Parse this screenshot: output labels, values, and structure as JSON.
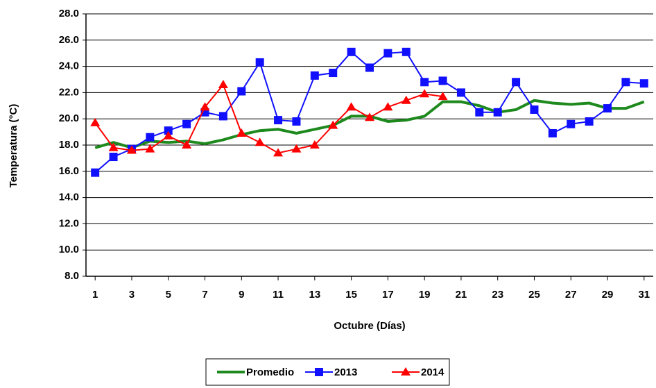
{
  "chart_data": {
    "type": "line",
    "x_label": "Octubre (Días)",
    "y_label": "Temperatura (°C)",
    "x": [
      1,
      2,
      3,
      4,
      5,
      6,
      7,
      8,
      9,
      10,
      11,
      12,
      13,
      14,
      15,
      16,
      17,
      18,
      19,
      20,
      21,
      22,
      23,
      24,
      25,
      26,
      27,
      28,
      29,
      30,
      31
    ],
    "series": [
      {
        "name": "Promedio",
        "color": "#1e8a1e",
        "marker": "none",
        "width": 4,
        "values": [
          17.8,
          18.2,
          17.8,
          18.3,
          18.2,
          18.3,
          18.1,
          18.4,
          18.8,
          19.1,
          19.2,
          18.9,
          19.2,
          19.5,
          20.2,
          20.2,
          19.8,
          19.9,
          20.2,
          21.3,
          21.3,
          21.0,
          20.5,
          20.7,
          21.4,
          21.2,
          21.1,
          21.2,
          20.8,
          20.8,
          21.3
        ]
      },
      {
        "name": "2013",
        "color": "#1010ff",
        "marker": "square",
        "width": 2,
        "values": [
          15.9,
          17.1,
          17.7,
          18.6,
          19.1,
          19.6,
          20.5,
          20.2,
          22.1,
          24.3,
          19.9,
          19.8,
          23.3,
          23.5,
          25.1,
          23.9,
          25.0,
          25.1,
          22.8,
          22.9,
          22.0,
          20.5,
          20.5,
          22.8,
          20.7,
          18.9,
          19.6,
          19.8,
          20.8,
          22.8,
          22.7
        ]
      },
      {
        "name": "2014",
        "color": "#ff0000",
        "marker": "triangle",
        "width": 2,
        "values": [
          19.7,
          17.8,
          17.6,
          17.7,
          18.7,
          18.0,
          20.9,
          22.6,
          18.9,
          18.2,
          17.4,
          17.7,
          18.0,
          19.5,
          20.9,
          20.1,
          20.9,
          21.4,
          21.9,
          21.7,
          null,
          null,
          null,
          null,
          null,
          null,
          null,
          null,
          null,
          null,
          null
        ]
      }
    ],
    "xlim": [
      0.5,
      31.5
    ],
    "xticks": [
      1,
      3,
      5,
      7,
      9,
      11,
      13,
      15,
      17,
      19,
      21,
      23,
      25,
      27,
      29,
      31
    ],
    "ylim": [
      8,
      28
    ],
    "yticks": [
      {
        "value": 8,
        "label": "8.0"
      },
      {
        "value": 10,
        "label": "10.0"
      },
      {
        "value": 12,
        "label": "12.0"
      },
      {
        "value": 14,
        "label": "14.0"
      },
      {
        "value": 16,
        "label": "16.0"
      },
      {
        "value": 18,
        "label": "18.0"
      },
      {
        "value": 20,
        "label": "20.0"
      },
      {
        "value": 22,
        "label": "22.0"
      },
      {
        "value": 24,
        "label": "24.0"
      },
      {
        "value": 26,
        "label": "26.0"
      },
      {
        "value": 28,
        "label": "28.0"
      }
    ],
    "grid": true,
    "legend": "bottom"
  }
}
